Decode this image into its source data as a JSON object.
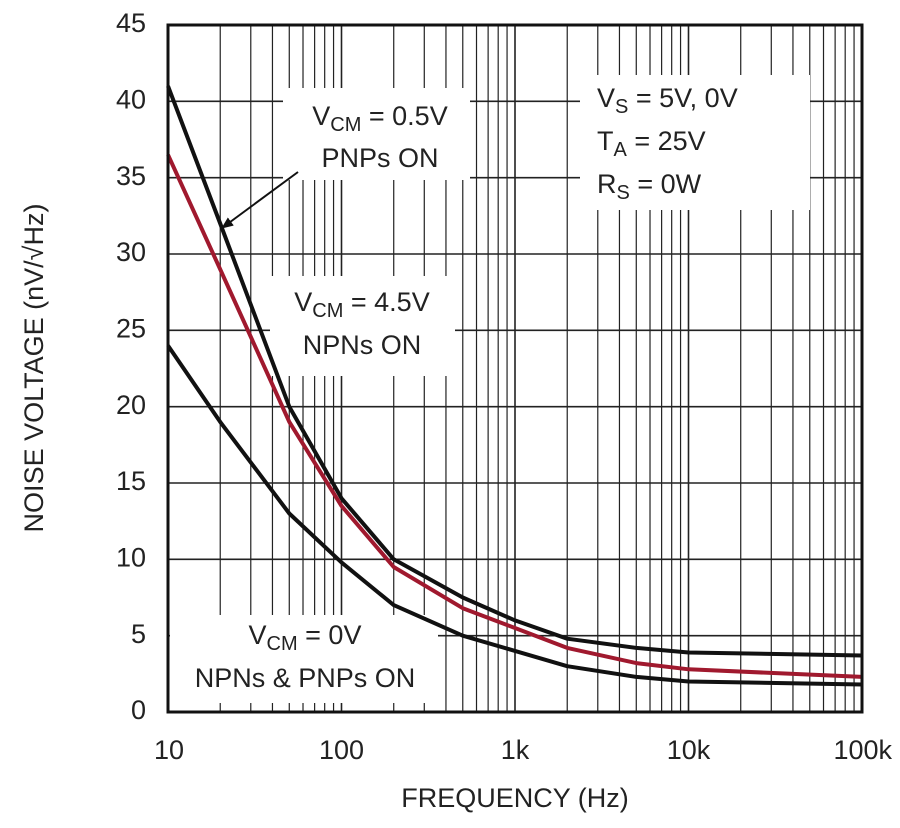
{
  "chart_data": {
    "type": "line",
    "x_label": "FREQUENCY (Hz)",
    "y_label": "NOISE VOLTAGE (nV/√Hz)",
    "x_scale": "log",
    "xlim": [
      10,
      100000
    ],
    "xticks": [
      10,
      100,
      {
        "value": 1000,
        "label": "1k"
      },
      {
        "value": 10000,
        "label": "10k"
      },
      {
        "value": 100000,
        "label": "100k"
      }
    ],
    "x_minor_grid": [
      20,
      30,
      40,
      50,
      60,
      70,
      80,
      90,
      200,
      300,
      400,
      500,
      600,
      700,
      800,
      900,
      2000,
      3000,
      4000,
      5000,
      6000,
      7000,
      8000,
      9000,
      20000,
      30000,
      40000,
      50000,
      60000,
      70000,
      80000,
      90000
    ],
    "ylim": [
      0,
      45
    ],
    "yticks": [
      0,
      5,
      10,
      15,
      20,
      25,
      30,
      35,
      40,
      45
    ],
    "grid": true,
    "x": [
      10,
      20,
      50,
      100,
      200,
      500,
      1000,
      2000,
      5000,
      10000,
      100000
    ],
    "series": [
      {
        "color": "#111111",
        "values": [
          41,
          32,
          20,
          14,
          10,
          7.5,
          6,
          4.8,
          4.2,
          3.9,
          3.7
        ]
      },
      {
        "color": "#a0192e",
        "values": [
          36.5,
          29,
          19,
          13.5,
          9.5,
          6.8,
          5.5,
          4.2,
          3.2,
          2.8,
          2.3
        ]
      },
      {
        "color": "#111111",
        "values": [
          24,
          19,
          13,
          9.8,
          7,
          5,
          4,
          3,
          2.3,
          2,
          1.8
        ]
      }
    ],
    "annotations": [
      {
        "lines": [
          [
            {
              "text": "V"
            },
            {
              "text": "CM",
              "sub": true
            },
            {
              "text": " = 0.5V"
            }
          ],
          [
            {
              "text": "PNPs ON"
            }
          ]
        ]
      },
      {
        "lines": [
          [
            {
              "text": "V"
            },
            {
              "text": "S",
              "sub": true
            },
            {
              "text": " = 5V, 0V"
            }
          ],
          [
            {
              "text": "T"
            },
            {
              "text": "A",
              "sub": true
            },
            {
              "text": " = 25V"
            }
          ],
          [
            {
              "text": "R"
            },
            {
              "text": "S",
              "sub": true
            },
            {
              "text": " = 0W"
            }
          ]
        ]
      },
      {
        "lines": [
          [
            {
              "text": "V"
            },
            {
              "text": "CM",
              "sub": true
            },
            {
              "text": " = 4.5V"
            }
          ],
          [
            {
              "text": "NPNs ON"
            }
          ]
        ]
      },
      {
        "lines": [
          [
            {
              "text": "V"
            },
            {
              "text": "CM",
              "sub": true
            },
            {
              "text": " = 0V"
            }
          ],
          [
            {
              "text": "NPNs & PNPs ON"
            }
          ]
        ]
      }
    ]
  }
}
